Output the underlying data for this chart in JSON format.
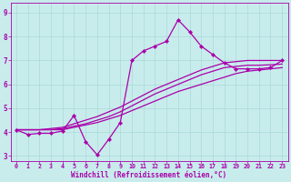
{
  "xlabel": "Windchill (Refroidissement éolien,°C)",
  "ylabel": "",
  "xlim": [
    -0.5,
    23.5
  ],
  "ylim": [
    2.8,
    9.4
  ],
  "xticks": [
    0,
    1,
    2,
    3,
    4,
    5,
    6,
    7,
    8,
    9,
    10,
    11,
    12,
    13,
    14,
    15,
    16,
    17,
    18,
    19,
    20,
    21,
    22,
    23
  ],
  "yticks": [
    3,
    4,
    5,
    6,
    7,
    8,
    9
  ],
  "bg_color": "#c8ecec",
  "line_color": "#aa00aa",
  "grid_color": "#aad8d8",
  "series_markers": [
    [
      4.1,
      3.9,
      3.95,
      3.95,
      4.05,
      4.7,
      3.6,
      3.05,
      3.7,
      4.4,
      7.0,
      7.4,
      7.6,
      7.8,
      8.7,
      8.2,
      7.6,
      7.25,
      6.9,
      6.65,
      6.65,
      6.65,
      6.7,
      7.0
    ]
  ],
  "series_smooth": [
    [
      4.1,
      4.1,
      4.1,
      4.1,
      4.15,
      4.25,
      4.35,
      4.5,
      4.65,
      4.85,
      5.1,
      5.35,
      5.6,
      5.8,
      6.0,
      6.2,
      6.4,
      6.55,
      6.7,
      6.75,
      6.8,
      6.8,
      6.82,
      6.85
    ],
    [
      4.1,
      4.1,
      4.1,
      4.1,
      4.1,
      4.2,
      4.3,
      4.4,
      4.55,
      4.7,
      4.9,
      5.1,
      5.3,
      5.5,
      5.7,
      5.85,
      6.0,
      6.15,
      6.3,
      6.45,
      6.55,
      6.6,
      6.65,
      6.7
    ],
    [
      4.1,
      4.1,
      4.1,
      4.15,
      4.2,
      4.35,
      4.5,
      4.65,
      4.85,
      5.05,
      5.3,
      5.55,
      5.8,
      6.0,
      6.2,
      6.4,
      6.6,
      6.75,
      6.9,
      6.95,
      7.0,
      7.0,
      7.0,
      7.0
    ]
  ]
}
